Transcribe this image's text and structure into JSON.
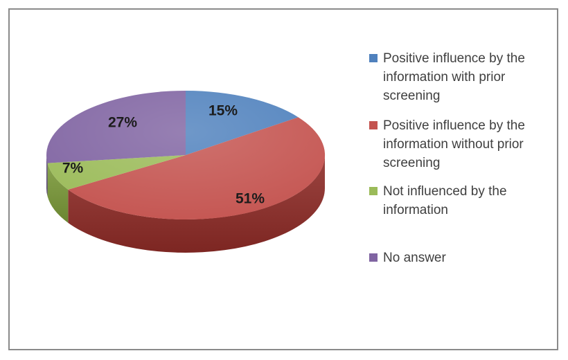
{
  "frame": {
    "background": "#ffffff",
    "border_color": "#8a8a8a"
  },
  "chart_data": {
    "type": "pie",
    "three_d": true,
    "title": "",
    "start_angle_deg": 0,
    "direction": "clockwise",
    "legend_position": "right",
    "categories": [
      "Positive influence by the information with prior screening",
      "Positive influence by the information without prior screening",
      "Not influenced by the information",
      "No answer"
    ],
    "values": [
      15,
      51,
      7,
      27
    ],
    "data_labels": [
      "15%",
      "51%",
      "7%",
      "27%"
    ],
    "colors": [
      "#4F81BD",
      "#C4534F",
      "#9BBB59",
      "#8064A2"
    ],
    "side_colors": [
      "#2E4E73",
      "#8C3531",
      "#7A9540",
      "#5D4979"
    ],
    "data_label_color": "#1c1c1c",
    "legend_text_color": "#3f3f3f"
  }
}
